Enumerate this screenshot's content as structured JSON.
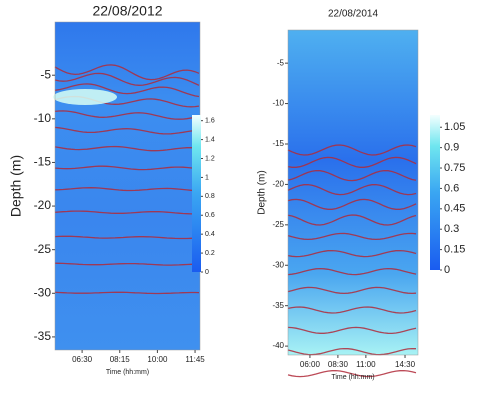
{
  "chart_data": [
    {
      "type": "heatmap",
      "title": "22/08/2012",
      "x_label": "Time (hh:mm)",
      "y_label": "Depth (m)",
      "xlim": [
        5.24,
        11.98
      ],
      "xticks": [
        {
          "value": 6.5,
          "label": "06:30"
        },
        {
          "value": 8.25,
          "label": "08:15"
        },
        {
          "value": 10,
          "label": "10:00"
        },
        {
          "value": 11.75,
          "label": "11:45"
        }
      ],
      "ylim": [
        -36.5,
        1.1
      ],
      "yticks": [
        -5,
        -10,
        -15,
        -20,
        -25,
        -30,
        -35
      ],
      "clim": [
        0,
        1.66
      ],
      "cticks": [
        0,
        0.2,
        0.4,
        0.6,
        0.8,
        1,
        1.2,
        1.4,
        1.6
      ]
    },
    {
      "type": "heatmap",
      "title": "22/08/2014",
      "x_label": "Time (hh:mm)",
      "y_label": "Depth (m)",
      "xlim": [
        4.04,
        15.66
      ],
      "xticks": [
        {
          "value": 6,
          "label": "06:00"
        },
        {
          "value": 8.5,
          "label": "08:30"
        },
        {
          "value": 11,
          "label": "11:00"
        },
        {
          "value": 14.5,
          "label": "14:30"
        }
      ],
      "ylim": [
        -41.1,
        -0.9
      ],
      "yticks": [
        -5,
        -10,
        -15,
        -20,
        -25,
        -30,
        -35,
        -40
      ],
      "clim": [
        0,
        1.14
      ],
      "cticks": [
        0,
        0.15,
        0.3,
        0.45,
        0.6,
        0.75,
        0.9,
        1.05
      ]
    }
  ]
}
